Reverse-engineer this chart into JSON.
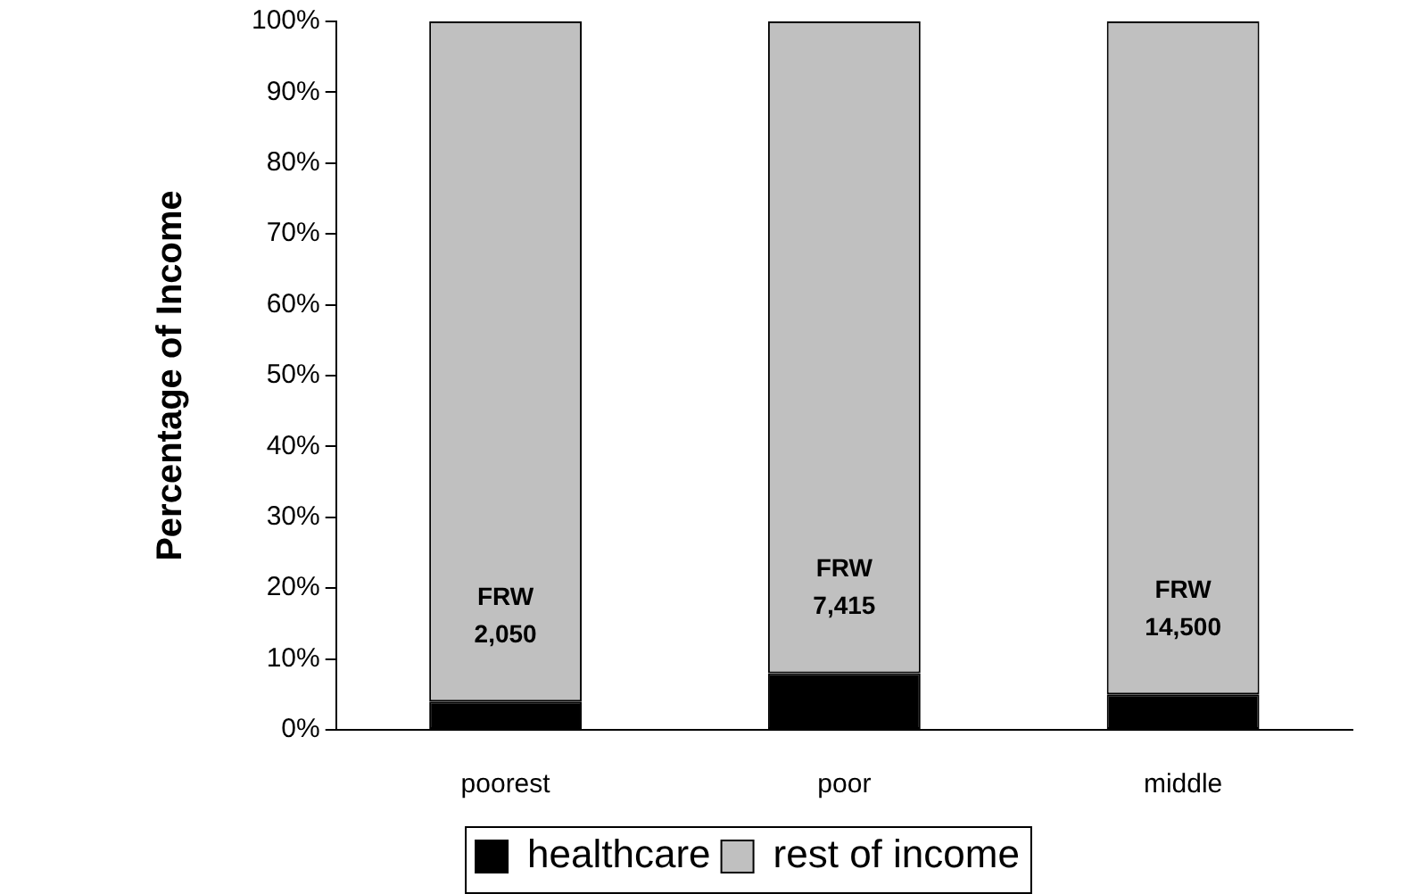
{
  "chart_data": {
    "type": "bar",
    "stacked": true,
    "ylabel": "Percentage of Income",
    "categories": [
      "poorest",
      "poor",
      "middle"
    ],
    "series": [
      {
        "name": "healthcare",
        "color": "#000000",
        "values": [
          4,
          8,
          5
        ]
      },
      {
        "name": "rest of income",
        "color": "#c0c0c0",
        "values": [
          96,
          92,
          95
        ]
      }
    ],
    "ylim": [
      0,
      100
    ],
    "yticks": [
      {
        "value": 0,
        "label": "0%"
      },
      {
        "value": 10,
        "label": "10%"
      },
      {
        "value": 20,
        "label": "20%"
      },
      {
        "value": 30,
        "label": "30%"
      },
      {
        "value": 40,
        "label": "40%"
      },
      {
        "value": 50,
        "label": "50%"
      },
      {
        "value": 60,
        "label": "60%"
      },
      {
        "value": 70,
        "label": "70%"
      },
      {
        "value": 80,
        "label": "80%"
      },
      {
        "value": 90,
        "label": "90%"
      },
      {
        "value": 100,
        "label": "100%"
      }
    ],
    "annotations": [
      "FRW\n2,050",
      "FRW\n7,415",
      "FRW\n14,500"
    ],
    "grid": false,
    "legend": "bottom"
  }
}
